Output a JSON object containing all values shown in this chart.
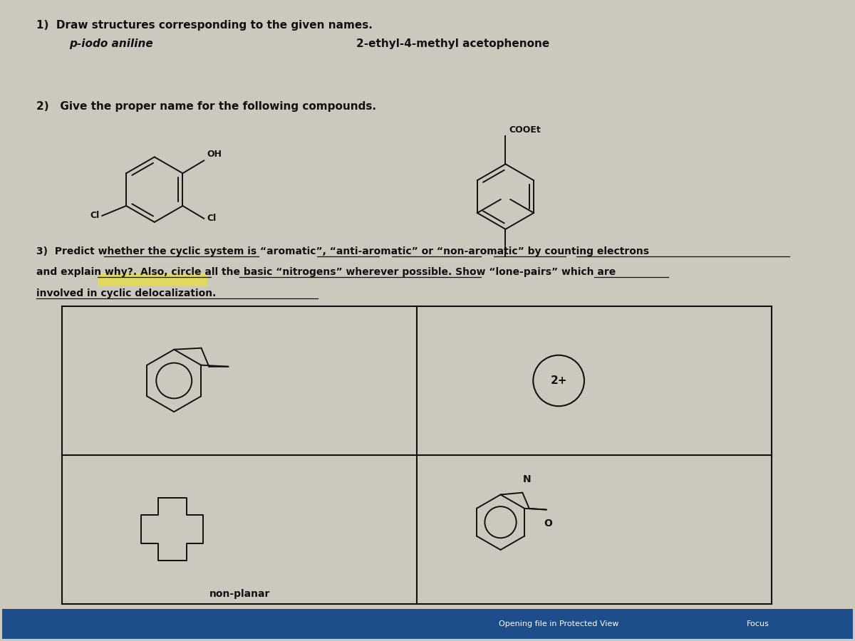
{
  "bg_color": "#cbc8be",
  "paper_color": "#d4d0c4",
  "text_color": "#111111",
  "line1": "1)  Draw structures corresponding to the given names.",
  "sub1a": "p-iodo aniline",
  "sub1b": "2-ethyl-4-methyl acetophenone",
  "line2": "2)   Give the proper name for the following compounds.",
  "label_OH": "OH",
  "label_COOEt": "COOEt",
  "label_Cl": "Cl",
  "line3a": "3)  Predict whether the cyclic system is “aromatic”, “anti-aromatic” or “non-aromatic” by counting electrons",
  "line3b": "and explain why?. Also, circle all the basic “nitrogens” wherever possible. Show “lone-pairs” which are",
  "line3c": "involved in cyclic delocalization.",
  "label_2plus": "2+",
  "label_N": "N",
  "label_O": "O",
  "label_nonplanar": "non-planar",
  "footer_left": "Opening file in Protected View",
  "footer_right": "Focus",
  "highlight_color": "#e8e040"
}
